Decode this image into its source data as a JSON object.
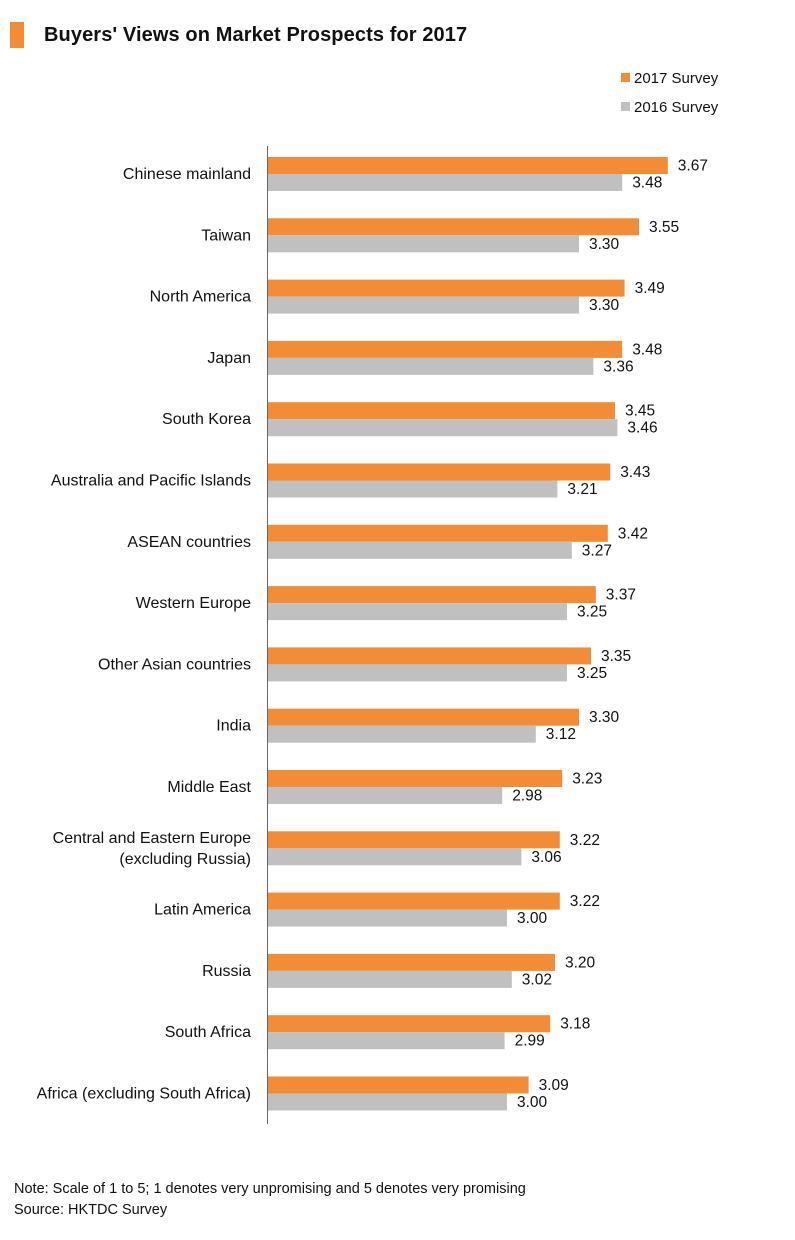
{
  "chart_data": {
    "type": "bar",
    "orientation": "horizontal",
    "title": "Buyers' Views on Market Prospects for 2017",
    "categories": [
      "Chinese mainland",
      "Taiwan",
      "North America",
      "Japan",
      "South Korea",
      "Australia and Pacific Islands",
      "ASEAN countries",
      "Western Europe",
      "Other Asian countries",
      "India",
      "Middle East",
      "Central and Eastern Europe (excluding Russia)",
      "Latin America",
      "Russia",
      "South Africa",
      "Africa (excluding South Africa)"
    ],
    "series": [
      {
        "name": "2017 Survey",
        "color": "#f28c36",
        "values": [
          3.67,
          3.55,
          3.49,
          3.48,
          3.45,
          3.43,
          3.42,
          3.37,
          3.35,
          3.3,
          3.23,
          3.22,
          3.22,
          3.2,
          3.18,
          3.09
        ],
        "labels": [
          "3.67",
          "3.55",
          "3.49",
          "3.48",
          "3.45",
          "3.43",
          "3.42",
          "3.37",
          "3.35",
          "3.30",
          "3.23",
          "3.22",
          "3.22",
          "3.20",
          "3.18",
          "3.09"
        ]
      },
      {
        "name": "2016 Survey",
        "color": "#c0c0c0",
        "values": [
          3.48,
          3.3,
          3.3,
          3.36,
          3.46,
          3.21,
          3.27,
          3.25,
          3.25,
          3.12,
          2.98,
          3.06,
          3.0,
          3.02,
          2.99,
          3.0
        ],
        "labels": [
          "3.48",
          "3.30",
          "3.30",
          "3.36",
          "3.46",
          "3.21",
          "3.27",
          "3.25",
          "3.25",
          "3.12",
          "2.98",
          "3.06",
          "3.00",
          "3.02",
          "2.99",
          "3.00"
        ]
      }
    ],
    "xlim": [
      2.0,
      3.85
    ],
    "grid": false,
    "legend_position": "top-right"
  },
  "footer": {
    "note": "Note: Scale of 1 to 5; 1 denotes very unpromising and 5 denotes very promising",
    "source": "Source: HKTDC Survey"
  },
  "colors": {
    "accent": "#f28c36",
    "comparison": "#c0c0c0",
    "axis": "#666666"
  }
}
